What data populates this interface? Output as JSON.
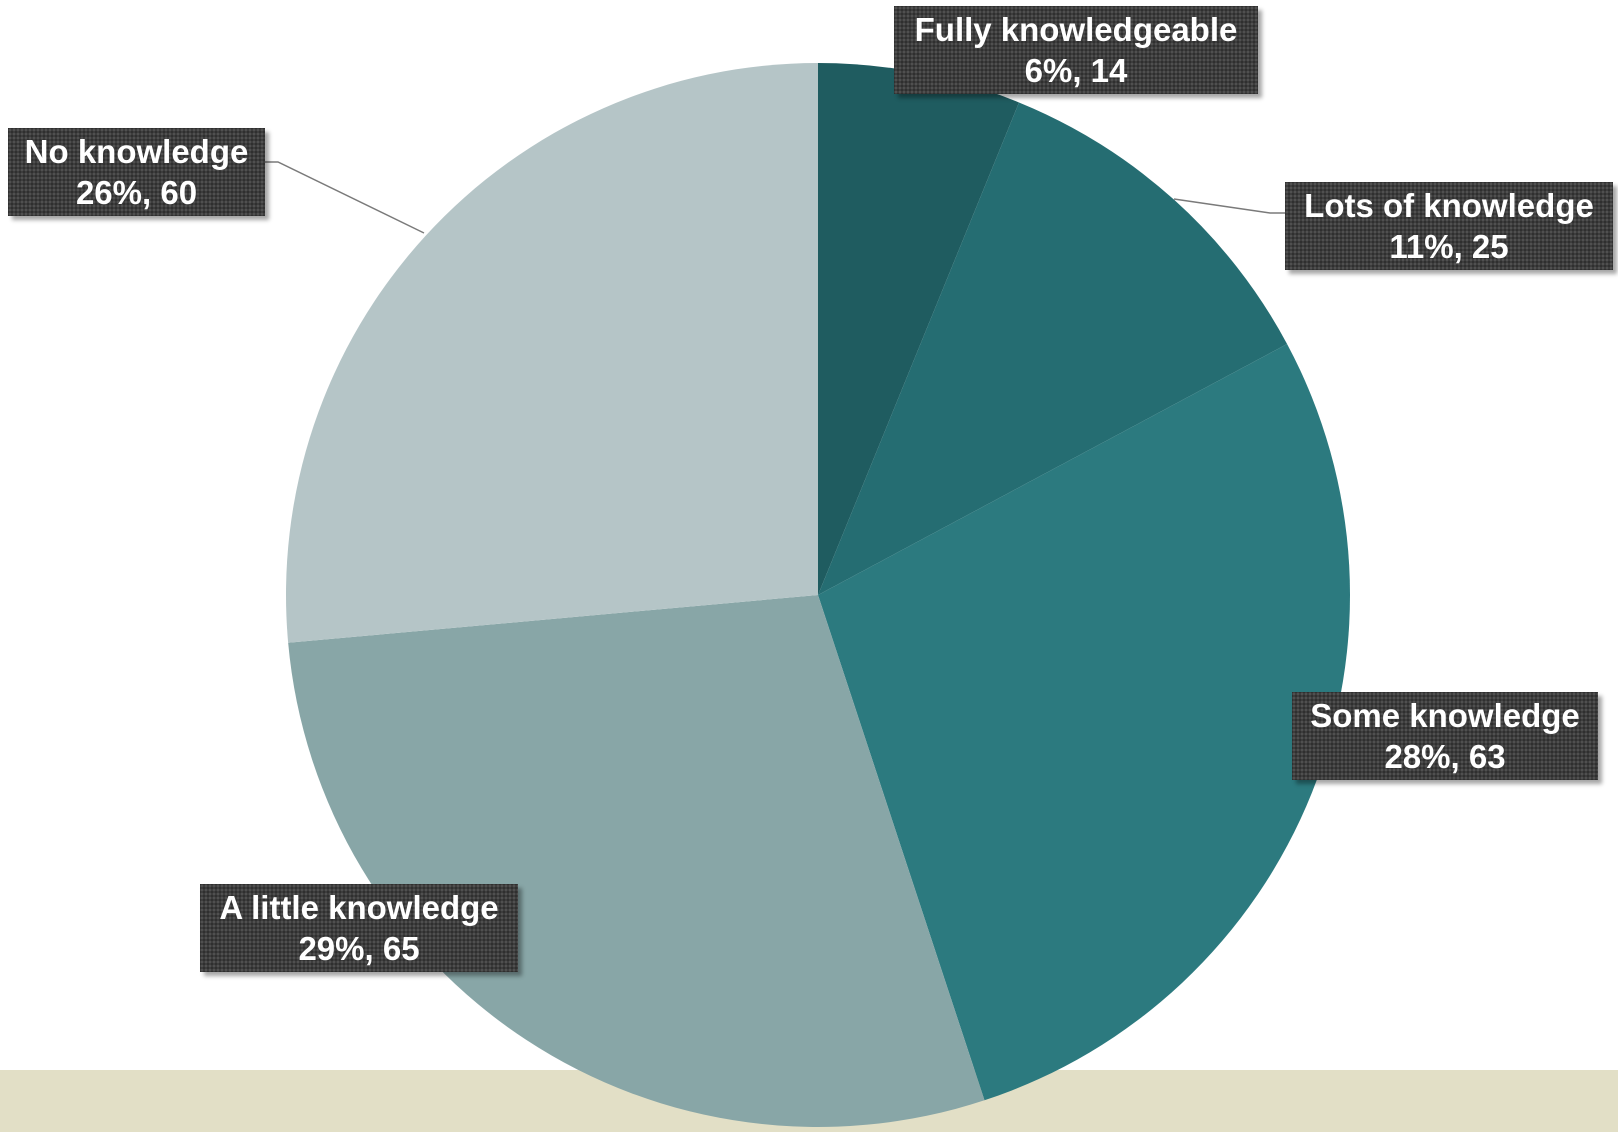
{
  "chart_data": {
    "type": "pie",
    "title": "",
    "start_angle_deg": 0,
    "direction": "clockwise",
    "slices": [
      {
        "name": "Fully knowledgeable",
        "value": 14,
        "percent_label": "6%, 14",
        "color": "#1f5c60"
      },
      {
        "name": "Lots of knowledge",
        "value": 25,
        "percent_label": "11%, 25",
        "color": "#256d72"
      },
      {
        "name": "Some knowledge",
        "value": 63,
        "percent_label": "28%, 63",
        "color": "#2c7a7f"
      },
      {
        "name": "A little knowledge",
        "value": 65,
        "percent_label": "29%, 65",
        "color": "#88a6a7"
      },
      {
        "name": "No knowledge",
        "value": 60,
        "percent_label": "26%, 60",
        "color": "#b5c5c7"
      }
    ]
  },
  "colors": {
    "background": "#ffffff",
    "footer_band": "#e2dfc6",
    "label_background": "#3d3d3d",
    "label_text": "#ffffff"
  }
}
